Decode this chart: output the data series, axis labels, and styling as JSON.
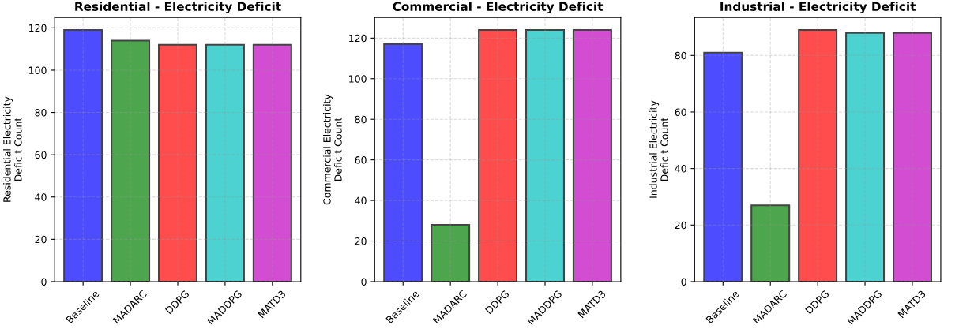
{
  "chart_data": [
    {
      "type": "bar",
      "title": "Residential - Electricity Deficit",
      "ylabel": "Residential Electricity\nDeficit Count",
      "categories": [
        "Baseline",
        "MADARC",
        "DDPG",
        "MADDPG",
        "MATD3"
      ],
      "values": [
        119,
        114,
        112,
        112,
        112
      ],
      "colors": [
        "#4d4dff",
        "#4da64d",
        "#ff4d4d",
        "#4dd2d2",
        "#d24dd2"
      ],
      "ylim": [
        0,
        124.95
      ],
      "yticks": [
        0,
        20,
        40,
        60,
        80,
        100,
        120
      ],
      "grid": true
    },
    {
      "type": "bar",
      "title": "Commercial - Electricity Deficit",
      "ylabel": "Commercial Electricity\nDeficit Count",
      "categories": [
        "Baseline",
        "MADARC",
        "DDPG",
        "MADDPG",
        "MATD3"
      ],
      "values": [
        117,
        28,
        124,
        124,
        124
      ],
      "colors": [
        "#4d4dff",
        "#4da64d",
        "#ff4d4d",
        "#4dd2d2",
        "#d24dd2"
      ],
      "ylim": [
        0,
        130.2
      ],
      "yticks": [
        0,
        20,
        40,
        60,
        80,
        100,
        120
      ],
      "grid": true
    },
    {
      "type": "bar",
      "title": "Industrial - Electricity Deficit",
      "ylabel": "Industrial Electricity\nDeficit Count",
      "categories": [
        "Baseline",
        "MADARC",
        "DDPG",
        "MADDPG",
        "MATD3"
      ],
      "values": [
        81,
        27,
        89,
        88,
        88
      ],
      "colors": [
        "#4d4dff",
        "#4da64d",
        "#ff4d4d",
        "#4dd2d2",
        "#d24dd2"
      ],
      "ylim": [
        0,
        93.45
      ],
      "yticks": [
        0,
        20,
        40,
        60,
        80
      ],
      "grid": true
    }
  ]
}
